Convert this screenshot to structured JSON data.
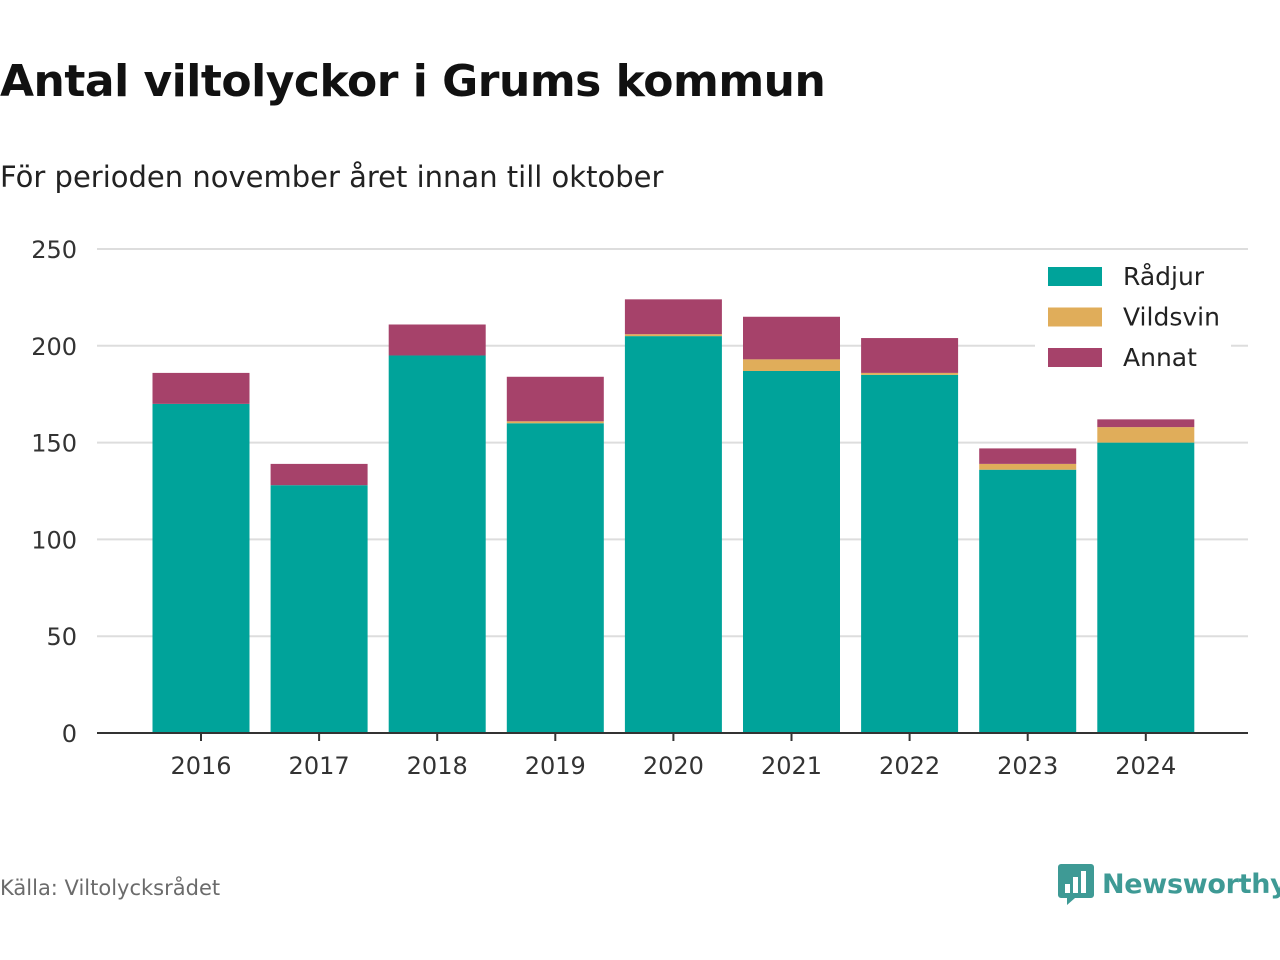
{
  "title": "Antal viltolyckor i Grums kommun",
  "subtitle": "För perioden november året innan till oktober",
  "source": "Källa: Viltolycksrådet",
  "brand": "Newsworthy",
  "colors": {
    "Rådjur": "#00a39a",
    "Vildsvin": "#e0ad5a",
    "Annat": "#a6426a",
    "brand": "#3e9a95"
  },
  "chart_data": {
    "type": "bar",
    "stacked": true,
    "categories": [
      "2016",
      "2017",
      "2018",
      "2019",
      "2020",
      "2021",
      "2022",
      "2023",
      "2024"
    ],
    "series": [
      {
        "name": "Rådjur",
        "values": [
          170,
          128,
          195,
          160,
          205,
          187,
          185,
          136,
          150
        ]
      },
      {
        "name": "Vildsvin",
        "values": [
          0,
          0,
          0,
          1,
          1,
          6,
          1,
          3,
          8
        ]
      },
      {
        "name": "Annat",
        "values": [
          16,
          11,
          16,
          23,
          18,
          22,
          18,
          8,
          4
        ]
      }
    ],
    "ylim": [
      0,
      250
    ],
    "yticks": [
      0,
      50,
      100,
      150,
      200,
      250
    ],
    "xlabel": "",
    "ylabel": "",
    "grid": true,
    "legend": "top-right"
  }
}
